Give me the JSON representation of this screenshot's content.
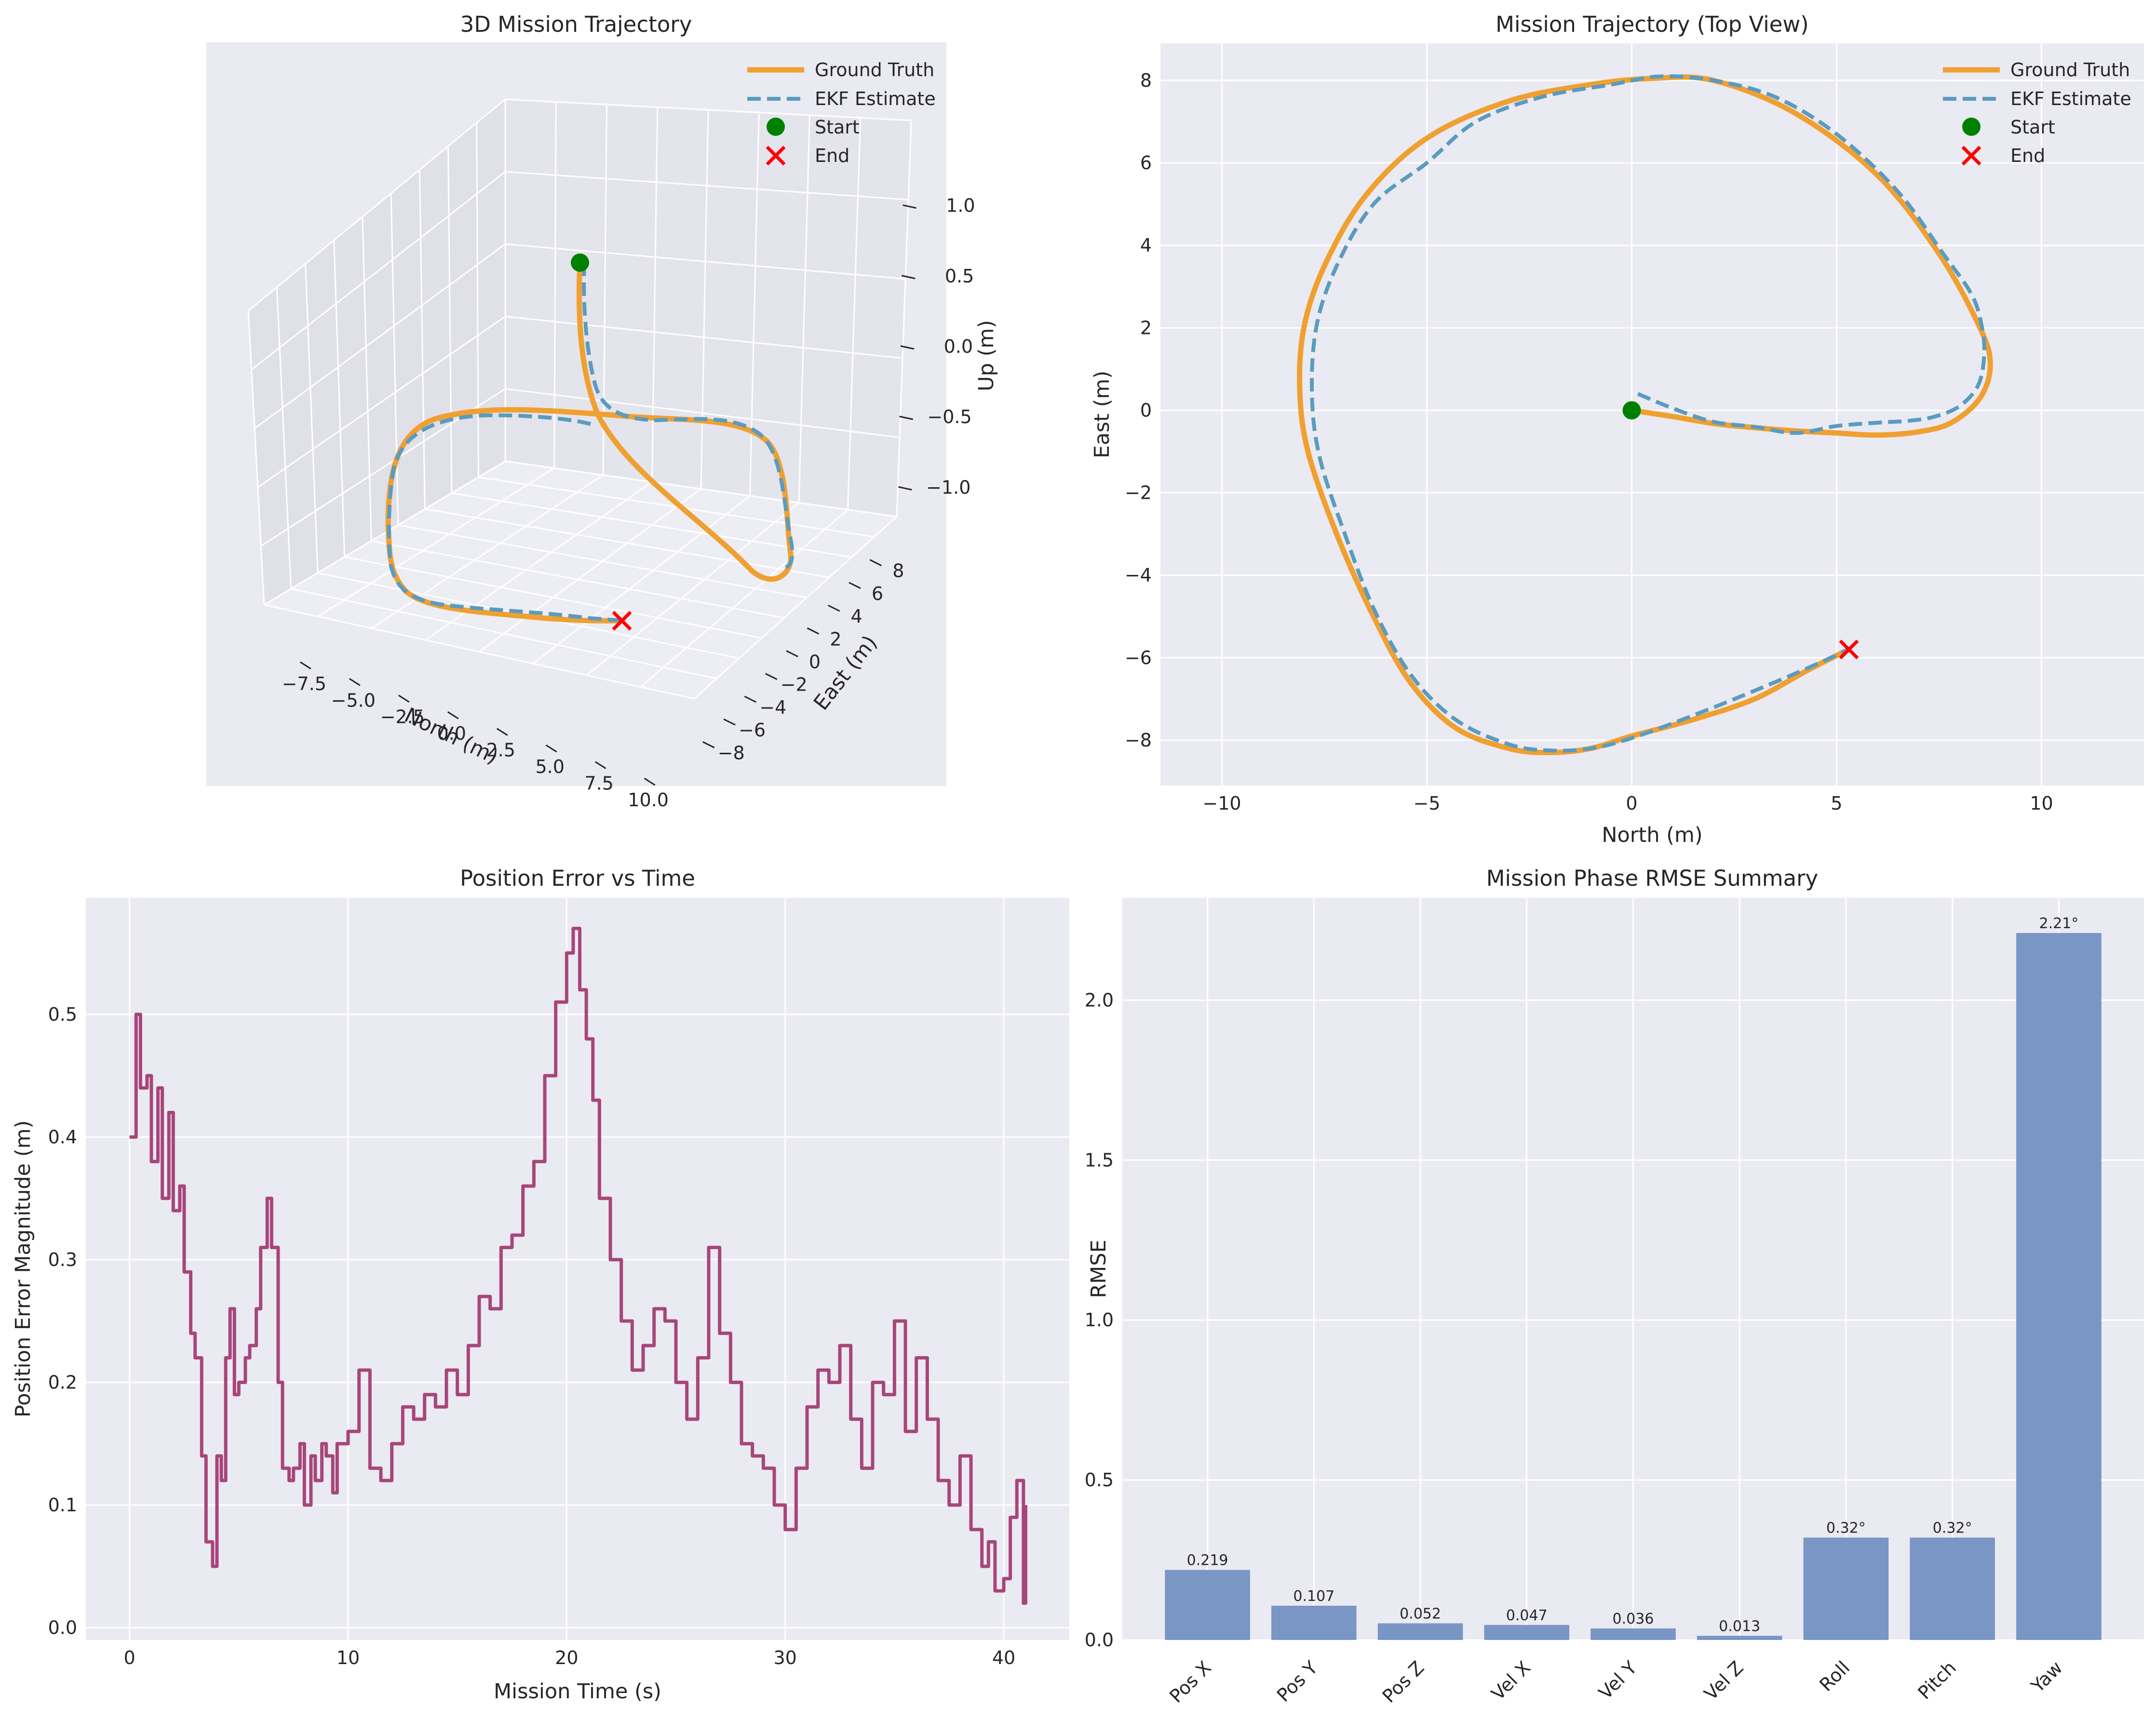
{
  "colors": {
    "background": "#EAEAF2",
    "grid": "#FFFFFF",
    "ground_truth": "#F0A030",
    "ekf_estimate": "#5B9BBF",
    "start_marker": "#008000",
    "end_marker": "#FF0000",
    "error_line": "#A8457A",
    "bar": "#7A96C4"
  },
  "chart_data": [
    {
      "id": "trajectory-3d",
      "type": "line",
      "projection": "3d",
      "title": "3D Mission Trajectory",
      "xlabel": "North (m)",
      "ylabel": "East (m)",
      "zlabel": "Up (m)",
      "x_ticks": [
        "−7.5",
        "−5.0",
        "−2.5",
        "0.0",
        "2.5",
        "5.0",
        "7.5",
        "10.0"
      ],
      "y_ticks": [
        "−8",
        "−6",
        "−4",
        "−2",
        "0",
        "2",
        "4",
        "6",
        "8"
      ],
      "z_ticks": [
        "−1.0",
        "−0.5",
        "0.0",
        "0.5",
        "1.0"
      ],
      "xlim": [
        -8.5,
        10.5
      ],
      "ylim": [
        -9,
        9
      ],
      "zlim": [
        -1.3,
        1.3
      ],
      "legend": [
        "Ground Truth",
        "EKF Estimate",
        "Start",
        "End"
      ],
      "legend_position": "top-right",
      "grid": true
    },
    {
      "id": "trajectory-top",
      "type": "line",
      "title": "Mission Trajectory (Top View)",
      "xlabel": "North (m)",
      "ylabel": "East (m)",
      "xlim": [
        -11.5,
        12.5
      ],
      "ylim": [
        -9.1,
        8.9
      ],
      "x_ticks": [
        "−10",
        "−5",
        "0",
        "5",
        "10"
      ],
      "y_ticks": [
        "−8",
        "−6",
        "−4",
        "−2",
        "0",
        "2",
        "4",
        "6",
        "8"
      ],
      "legend": [
        "Ground Truth",
        "EKF Estimate",
        "Start",
        "End"
      ],
      "legend_position": "top-right",
      "grid": true,
      "start": [
        0,
        0
      ],
      "end": [
        5.3,
        -5.8
      ],
      "ground_truth": [
        [
          0,
          0
        ],
        [
          1,
          -0.15
        ],
        [
          2,
          -0.32
        ],
        [
          3,
          -0.42
        ],
        [
          4,
          -0.5
        ],
        [
          5,
          -0.55
        ],
        [
          6,
          -0.6
        ],
        [
          7,
          -0.52
        ],
        [
          7.8,
          -0.3
        ],
        [
          8.5,
          0.3
        ],
        [
          8.75,
          1.1
        ],
        [
          8.5,
          2
        ],
        [
          7.5,
          3.8
        ],
        [
          6,
          5.7
        ],
        [
          4,
          7.2
        ],
        [
          2,
          8
        ],
        [
          0.5,
          8.05
        ],
        [
          -1,
          7.9
        ],
        [
          -3,
          7.5
        ],
        [
          -5,
          6.6
        ],
        [
          -6.5,
          5.2
        ],
        [
          -7.5,
          3.5
        ],
        [
          -8,
          2
        ],
        [
          -8.1,
          0.5
        ],
        [
          -7.9,
          -1
        ],
        [
          -7.2,
          -3
        ],
        [
          -6.3,
          -5
        ],
        [
          -5.4,
          -6.6
        ],
        [
          -4.3,
          -7.7
        ],
        [
          -3,
          -8.2
        ],
        [
          -2,
          -8.3
        ],
        [
          -1,
          -8.2
        ],
        [
          0,
          -7.9
        ],
        [
          1.5,
          -7.5
        ],
        [
          3,
          -7
        ],
        [
          4.3,
          -6.3
        ],
        [
          5.3,
          -5.8
        ]
      ],
      "ekf_estimate": [
        [
          0.15,
          0.4
        ],
        [
          1,
          0.05
        ],
        [
          2,
          -0.28
        ],
        [
          3,
          -0.4
        ],
        [
          4,
          -0.55
        ],
        [
          5,
          -0.38
        ],
        [
          6,
          -0.3
        ],
        [
          6.8,
          -0.25
        ],
        [
          7.4,
          -0.15
        ],
        [
          8,
          0.1
        ],
        [
          8.45,
          0.6
        ],
        [
          8.6,
          1.3
        ],
        [
          8.55,
          2
        ],
        [
          8.3,
          2.8
        ],
        [
          7.6,
          3.8
        ],
        [
          6.5,
          5.3
        ],
        [
          5,
          6.7
        ],
        [
          3.5,
          7.6
        ],
        [
          2,
          8
        ],
        [
          0.7,
          8.1
        ],
        [
          -0.5,
          7.9
        ],
        [
          -2.2,
          7.6
        ],
        [
          -3.8,
          7
        ],
        [
          -5,
          6
        ],
        [
          -6.3,
          5
        ],
        [
          -7.2,
          3.5
        ],
        [
          -7.7,
          2
        ],
        [
          -7.8,
          0.3
        ],
        [
          -7.6,
          -1.2
        ],
        [
          -7,
          -3
        ],
        [
          -6.3,
          -4.8
        ],
        [
          -5.4,
          -6.4
        ],
        [
          -4.3,
          -7.5
        ],
        [
          -3,
          -8.1
        ],
        [
          -2,
          -8.25
        ],
        [
          -1,
          -8.2
        ],
        [
          0,
          -7.95
        ],
        [
          1.5,
          -7.4
        ],
        [
          3,
          -6.8
        ],
        [
          4.3,
          -6.25
        ],
        [
          5.3,
          -5.8
        ]
      ]
    },
    {
      "id": "position-error",
      "type": "line",
      "title": "Position Error vs Time",
      "xlabel": "Mission Time (s)",
      "ylabel": "Position Error Magnitude (m)",
      "xlim": [
        -2,
        43
      ],
      "ylim": [
        -0.01,
        0.595
      ],
      "x_ticks": [
        "0",
        "10",
        "20",
        "30",
        "40"
      ],
      "y_ticks": [
        "0.0",
        "0.1",
        "0.2",
        "0.3",
        "0.4",
        "0.5"
      ],
      "grid": true,
      "series": [
        {
          "x": [
            0,
            0.3,
            0.5,
            0.8,
            1,
            1.3,
            1.5,
            1.8,
            2,
            2.3,
            2.5,
            2.8,
            3,
            3.3,
            3.5,
            3.8,
            4,
            4.2,
            4.4,
            4.6,
            4.8,
            5,
            5.3,
            5.5,
            5.8,
            6,
            6.3,
            6.5,
            6.8,
            7,
            7.3,
            7.5,
            7.8,
            8,
            8.3,
            8.5,
            8.8,
            9,
            9.3,
            9.5,
            10,
            10.5,
            11,
            11.5,
            12,
            12.5,
            13,
            13.5,
            14,
            14.5,
            15,
            15.5,
            16,
            16.5,
            17,
            17.5,
            18,
            18.5,
            19,
            19.5,
            20,
            20.3,
            20.6,
            20.9,
            21.2,
            21.5,
            22,
            22.5,
            23,
            23.5,
            24,
            24.5,
            25,
            25.5,
            26,
            26.5,
            27,
            27.5,
            28,
            28.5,
            29,
            29.5,
            30,
            30.5,
            31,
            31.5,
            32,
            32.5,
            33,
            33.5,
            34,
            34.5,
            35,
            35.5,
            36,
            36.5,
            37,
            37.5,
            38,
            38.5,
            39,
            39.3,
            39.6,
            40,
            40.3,
            40.6,
            40.9,
            41
          ],
          "y": [
            0.4,
            0.5,
            0.44,
            0.45,
            0.38,
            0.44,
            0.35,
            0.42,
            0.34,
            0.36,
            0.29,
            0.24,
            0.22,
            0.14,
            0.07,
            0.05,
            0.14,
            0.12,
            0.22,
            0.26,
            0.19,
            0.2,
            0.22,
            0.23,
            0.26,
            0.31,
            0.35,
            0.31,
            0.2,
            0.13,
            0.12,
            0.13,
            0.15,
            0.1,
            0.14,
            0.12,
            0.15,
            0.14,
            0.11,
            0.15,
            0.16,
            0.21,
            0.13,
            0.12,
            0.15,
            0.18,
            0.17,
            0.19,
            0.18,
            0.21,
            0.19,
            0.23,
            0.27,
            0.26,
            0.31,
            0.32,
            0.36,
            0.38,
            0.45,
            0.51,
            0.55,
            0.57,
            0.52,
            0.48,
            0.43,
            0.35,
            0.3,
            0.25,
            0.21,
            0.23,
            0.26,
            0.25,
            0.2,
            0.17,
            0.22,
            0.31,
            0.24,
            0.2,
            0.15,
            0.14,
            0.13,
            0.1,
            0.08,
            0.13,
            0.18,
            0.21,
            0.2,
            0.23,
            0.17,
            0.13,
            0.2,
            0.19,
            0.25,
            0.16,
            0.22,
            0.17,
            0.12,
            0.1,
            0.14,
            0.08,
            0.05,
            0.07,
            0.03,
            0.04,
            0.09,
            0.12,
            0.02,
            0.1
          ]
        }
      ]
    },
    {
      "id": "rmse-summary",
      "type": "bar",
      "title": "Mission Phase RMSE Summary",
      "xlabel": "",
      "ylabel": "RMSE",
      "ylim": [
        0,
        2.32
      ],
      "y_ticks": [
        "0.0",
        "0.5",
        "1.0",
        "1.5",
        "2.0"
      ],
      "grid": true,
      "categories": [
        "Pos X",
        "Pos Y",
        "Pos Z",
        "Vel X",
        "Vel Y",
        "Vel Z",
        "Roll",
        "Pitch",
        "Yaw"
      ],
      "values": [
        0.219,
        0.107,
        0.052,
        0.047,
        0.036,
        0.013,
        0.32,
        0.32,
        2.21
      ],
      "labels": [
        "0.219",
        "0.107",
        "0.052",
        "0.047",
        "0.036",
        "0.013",
        "0.32°",
        "0.32°",
        "2.21°"
      ]
    }
  ]
}
